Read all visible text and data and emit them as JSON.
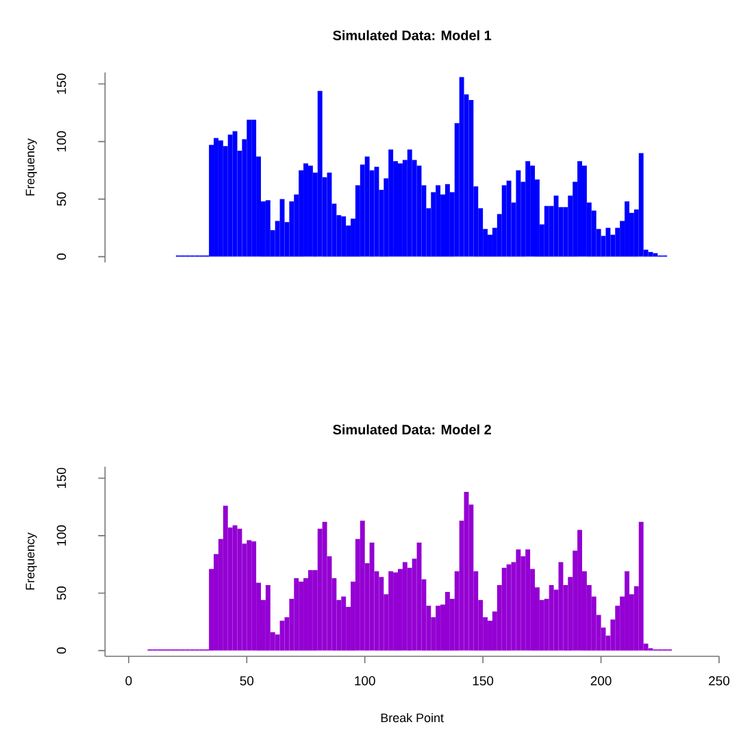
{
  "chart_data": [
    {
      "type": "histogram",
      "title": "Simulated Data: Model 1",
      "ylabel": "Frequency",
      "color": "#0000ff",
      "xlim": [
        -10,
        250
      ],
      "ylim": [
        -5,
        160
      ],
      "yticks": [
        0,
        50,
        100,
        150
      ],
      "tick_labels": "y",
      "bins": [
        20,
        22,
        24,
        26,
        28,
        30,
        32,
        34,
        36,
        38,
        40,
        42,
        44,
        46,
        48,
        50,
        52,
        54,
        56,
        58,
        60,
        62,
        64,
        66,
        68,
        70,
        72,
        74,
        76,
        78,
        80,
        82,
        84,
        86,
        88,
        90,
        92,
        94,
        96,
        98,
        100,
        102,
        104,
        106,
        108,
        110,
        112,
        114,
        116,
        118,
        120,
        122,
        124,
        126,
        128,
        130,
        132,
        134,
        136,
        138,
        140,
        142,
        144,
        146,
        148,
        150,
        152,
        154,
        156,
        158,
        160,
        162,
        164,
        166,
        168,
        170,
        172,
        174,
        176,
        178,
        180,
        182,
        184,
        186,
        188,
        190,
        192,
        194,
        196,
        198,
        200,
        202,
        204,
        206,
        208,
        210,
        212,
        214,
        216,
        218,
        220,
        222,
        224,
        226,
        228
      ],
      "values": [
        1,
        1,
        1,
        1,
        1,
        1,
        1,
        97,
        103,
        101,
        96,
        106,
        109,
        92,
        102,
        119,
        119,
        87,
        48,
        49,
        23,
        31,
        50,
        30,
        48,
        54,
        75,
        81,
        79,
        73,
        144,
        69,
        73,
        46,
        36,
        35,
        27,
        33,
        62,
        80,
        87,
        75,
        78,
        58,
        68,
        93,
        83,
        81,
        84,
        93,
        84,
        79,
        62,
        42,
        56,
        62,
        54,
        63,
        56,
        116,
        156,
        141,
        136,
        61,
        42,
        24,
        19,
        25,
        37,
        62,
        66,
        47,
        75,
        65,
        83,
        79,
        67,
        28,
        44,
        44,
        53,
        43,
        43,
        53,
        65,
        83,
        79,
        47,
        40,
        24,
        18,
        25,
        19,
        25,
        31,
        48,
        38,
        41,
        90,
        6,
        4,
        3,
        1,
        1
      ]
    },
    {
      "type": "histogram",
      "title": "Simulated Data: Model 2",
      "xlabel": "Break Point",
      "ylabel": "Frequency",
      "color": "#9400d3",
      "xlim": [
        -10,
        250
      ],
      "ylim": [
        -5,
        160
      ],
      "xticks": [
        0,
        50,
        100,
        150,
        200,
        250
      ],
      "yticks": [
        0,
        50,
        100,
        150
      ],
      "bins": [
        8,
        10,
        12,
        14,
        16,
        18,
        20,
        22,
        24,
        26,
        28,
        30,
        32,
        34,
        36,
        38,
        40,
        42,
        44,
        46,
        48,
        50,
        52,
        54,
        56,
        58,
        60,
        62,
        64,
        66,
        68,
        70,
        72,
        74,
        76,
        78,
        80,
        82,
        84,
        86,
        88,
        90,
        92,
        94,
        96,
        98,
        100,
        102,
        104,
        106,
        108,
        110,
        112,
        114,
        116,
        118,
        120,
        122,
        124,
        126,
        128,
        130,
        132,
        134,
        136,
        138,
        140,
        142,
        144,
        146,
        148,
        150,
        152,
        154,
        156,
        158,
        160,
        162,
        164,
        166,
        168,
        170,
        172,
        174,
        176,
        178,
        180,
        182,
        184,
        186,
        188,
        190,
        192,
        194,
        196,
        198,
        200,
        202,
        204,
        206,
        208,
        210,
        212,
        214,
        216,
        218,
        220,
        222,
        224,
        226,
        228,
        230
      ],
      "values": [
        1,
        1,
        1,
        1,
        1,
        1,
        1,
        1,
        1,
        1,
        1,
        1,
        1,
        71,
        84,
        97,
        126,
        107,
        109,
        106,
        93,
        96,
        95,
        59,
        44,
        57,
        16,
        14,
        26,
        29,
        45,
        63,
        60,
        63,
        70,
        70,
        106,
        112,
        82,
        63,
        44,
        47,
        38,
        60,
        97,
        113,
        76,
        94,
        69,
        64,
        49,
        69,
        68,
        71,
        77,
        72,
        80,
        94,
        62,
        39,
        29,
        39,
        40,
        51,
        45,
        69,
        113,
        138,
        127,
        69,
        44,
        29,
        26,
        34,
        57,
        72,
        75,
        77,
        88,
        82,
        88,
        71,
        55,
        44,
        45,
        57,
        53,
        77,
        57,
        64,
        87,
        105,
        69,
        57,
        47,
        31,
        20,
        13,
        27,
        39,
        47,
        69,
        49,
        56,
        112,
        6,
        2,
        1,
        1,
        1,
        1
      ]
    }
  ]
}
